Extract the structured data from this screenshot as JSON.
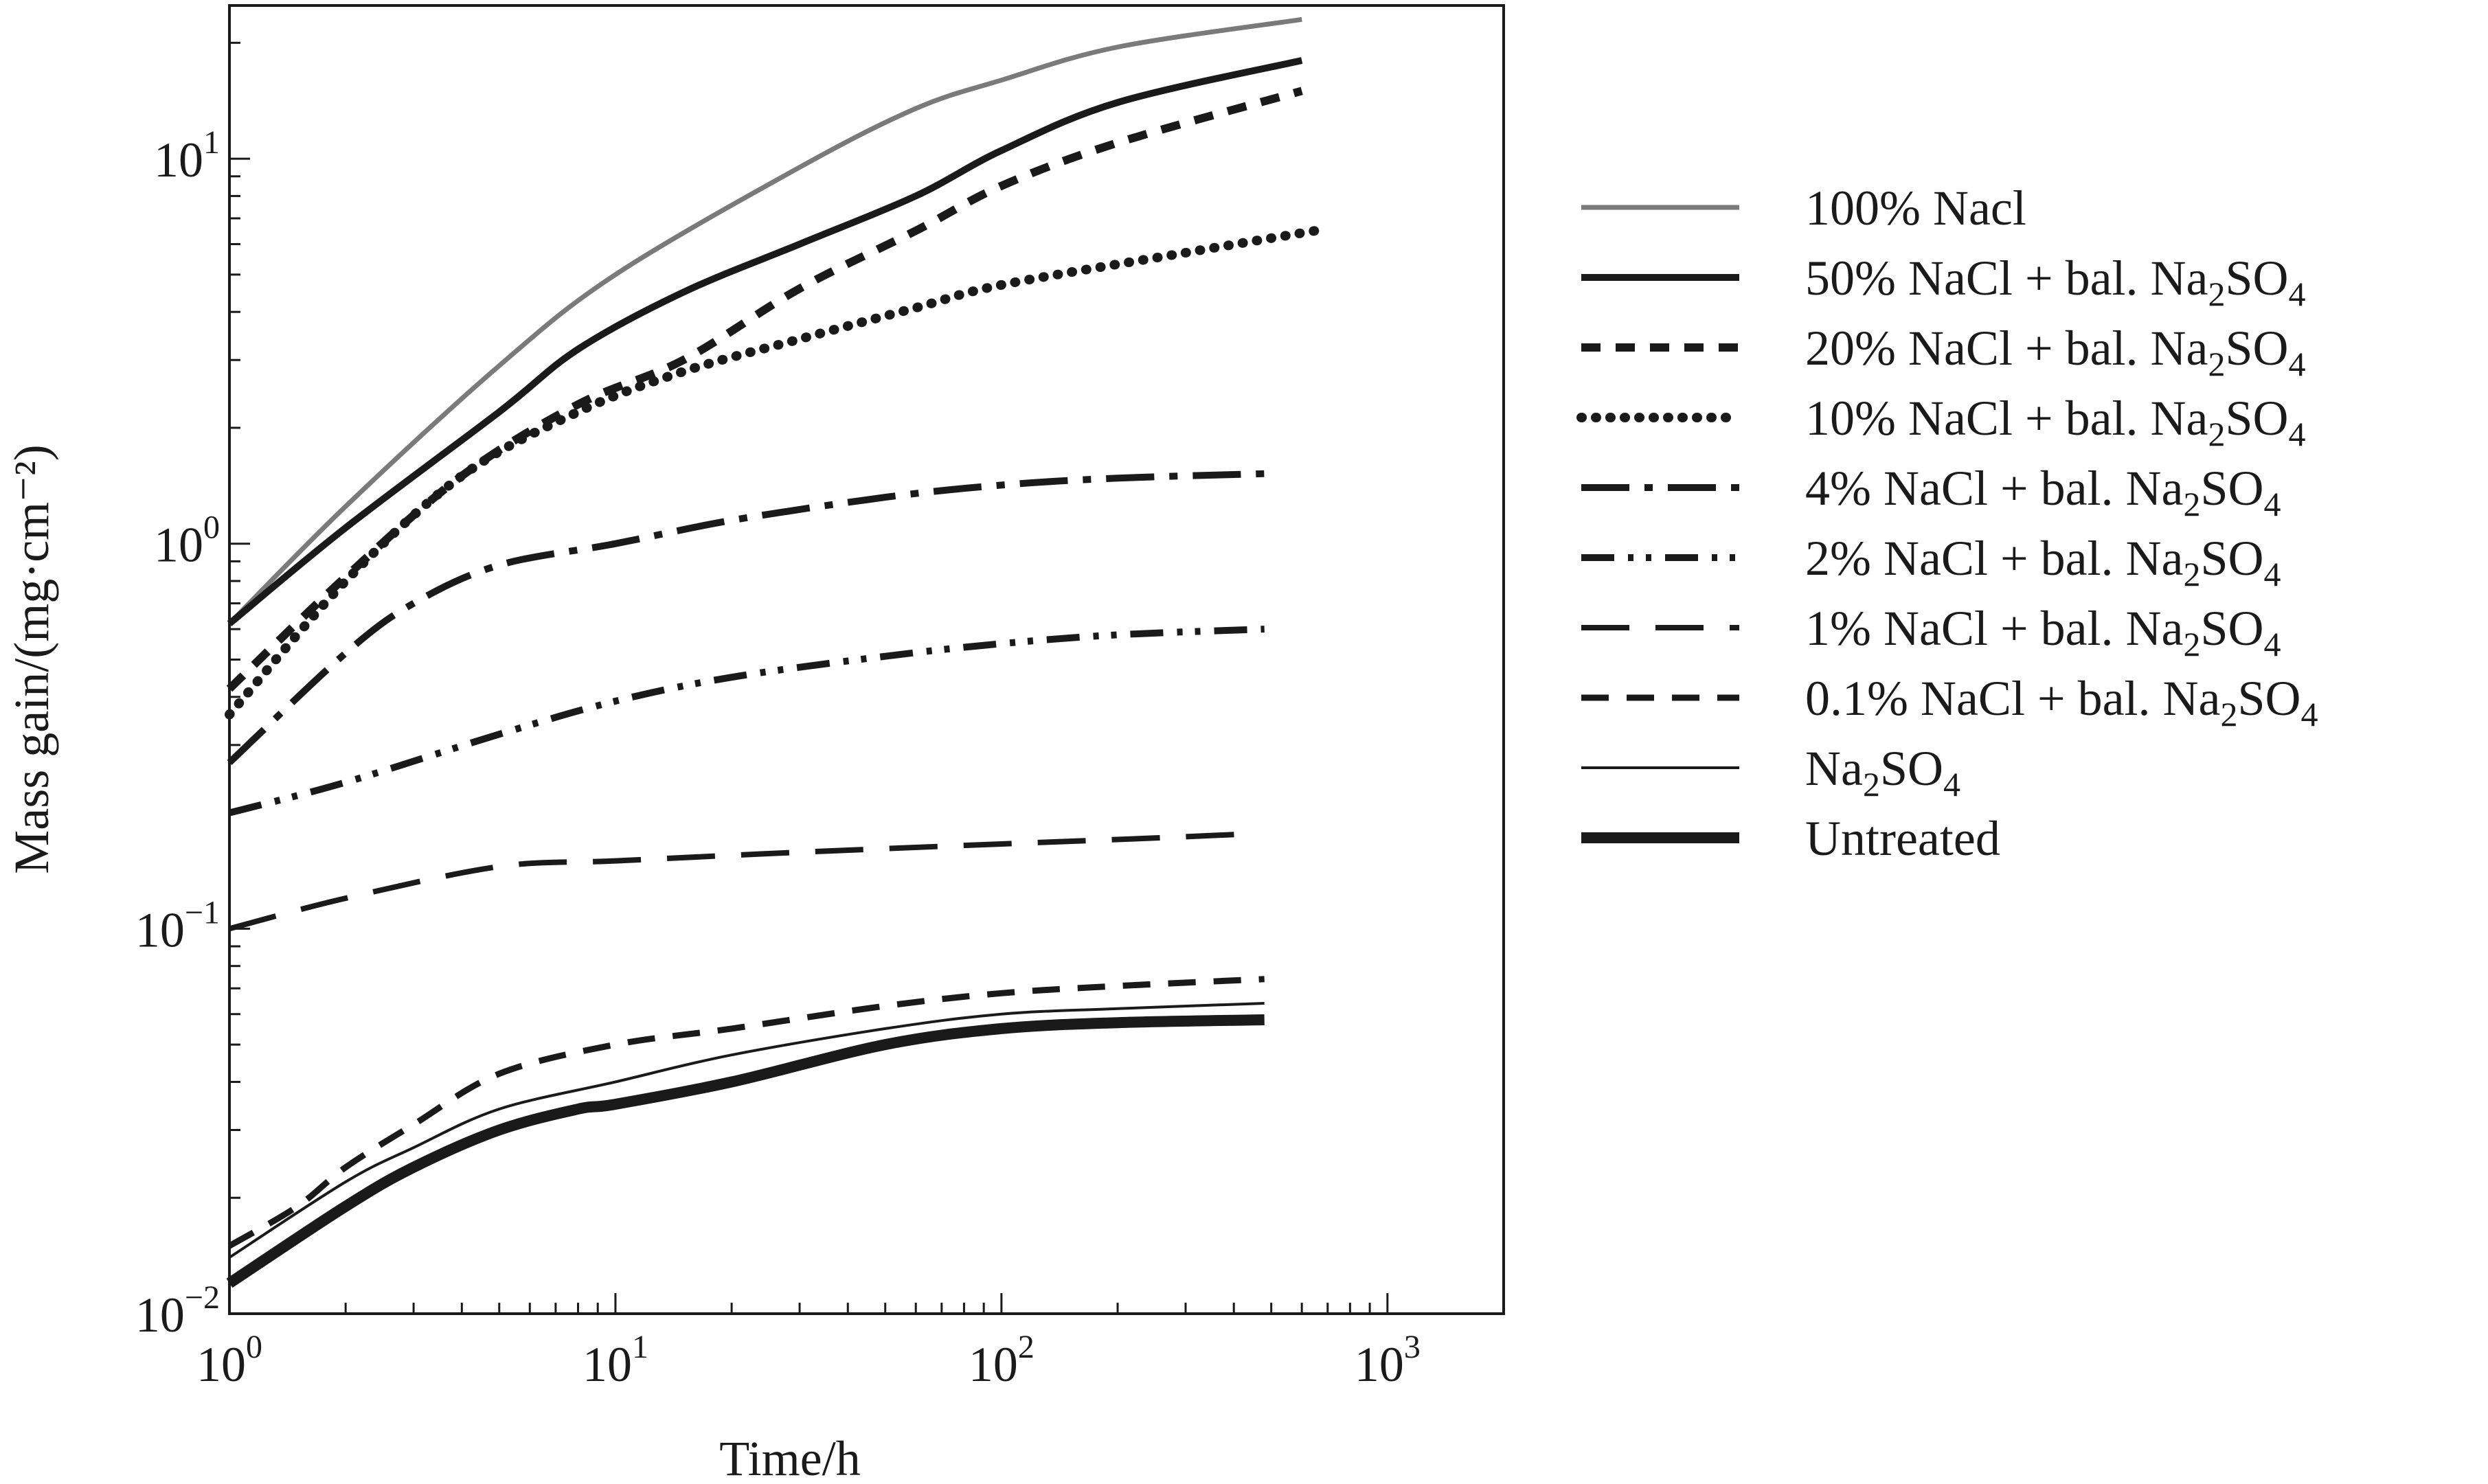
{
  "chart_data": {
    "type": "line",
    "title": "",
    "xlabel": "Time/h",
    "ylabel": "Mass gain/(mg·cm⁻²)",
    "xscale": "log",
    "yscale": "log",
    "xlim": [
      1,
      2000
    ],
    "ylim": [
      0.01,
      25
    ],
    "xticks": [
      {
        "value": 1,
        "base": "10",
        "exp": "0"
      },
      {
        "value": 10,
        "base": "10",
        "exp": "1"
      },
      {
        "value": 100,
        "base": "10",
        "exp": "2"
      },
      {
        "value": 1000,
        "base": "10",
        "exp": "3"
      }
    ],
    "yticks": [
      {
        "value": 0.01,
        "base": "10",
        "exp": "−2"
      },
      {
        "value": 0.1,
        "base": "10",
        "exp": "−1"
      },
      {
        "value": 1,
        "base": "10",
        "exp": "0"
      },
      {
        "value": 10,
        "base": "10",
        "exp": "1"
      }
    ],
    "grid": false,
    "legend_position": "right",
    "series": [
      {
        "name": "100% Nacl",
        "style": "solid-gray",
        "x": [
          1,
          2,
          5,
          10,
          30,
          60,
          100,
          200,
          600
        ],
        "y": [
          0.62,
          1.25,
          2.9,
          5.0,
          9.5,
          13.5,
          16.0,
          19.5,
          23.0
        ]
      },
      {
        "name": "50% NaCl + bal. Na2SO4",
        "label_main": "50% NaCl + bal. Na",
        "sub1": "2",
        "mid": "SO",
        "sub2": "4",
        "style": "thick-solid",
        "x": [
          1,
          2,
          5,
          8,
          15,
          30,
          60,
          100,
          200,
          600
        ],
        "y": [
          0.62,
          1.1,
          2.2,
          3.2,
          4.5,
          6.0,
          8.0,
          10.5,
          14.0,
          18.0
        ]
      },
      {
        "name": "20% NaCl + bal. Na2SO4",
        "label_main": "20% NaCl + bal. Na",
        "sub1": "2",
        "mid": "SO",
        "sub2": "4",
        "style": "short-dash",
        "x": [
          1,
          2,
          4,
          8,
          15,
          30,
          60,
          100,
          200,
          600
        ],
        "y": [
          0.42,
          0.82,
          1.5,
          2.3,
          3.0,
          4.6,
          6.5,
          8.5,
          11.0,
          15.0
        ]
      },
      {
        "name": "10% NaCl + bal. Na2SO4",
        "label_main": "10% NaCl + bal. Na",
        "sub1": "2",
        "mid": "SO",
        "sub2": "4",
        "style": "dotted",
        "x": [
          1,
          2,
          4,
          8,
          15,
          30,
          60,
          100,
          300,
          650
        ],
        "y": [
          0.36,
          0.8,
          1.5,
          2.2,
          2.8,
          3.4,
          4.1,
          4.7,
          5.7,
          6.5
        ]
      },
      {
        "name": "4% NaCl + bal. Na2SO4",
        "label_main": "4% NaCl + bal. Na",
        "sub1": "2",
        "mid": "SO",
        "sub2": "4",
        "style": "dash-dot",
        "x": [
          1,
          2,
          3,
          5,
          10,
          20,
          50,
          100,
          200,
          480
        ],
        "y": [
          0.27,
          0.52,
          0.7,
          0.88,
          1.0,
          1.15,
          1.32,
          1.42,
          1.48,
          1.52
        ]
      },
      {
        "name": "2% NaCl + bal. Na2SO4",
        "label_main": "2% NaCl + bal. Na",
        "sub1": "2",
        "mid": "SO",
        "sub2": "4",
        "style": "dash-dot-dot",
        "x": [
          1,
          2,
          5,
          10,
          20,
          50,
          100,
          200,
          480
        ],
        "y": [
          0.2,
          0.24,
          0.32,
          0.39,
          0.45,
          0.51,
          0.55,
          0.58,
          0.6
        ]
      },
      {
        "name": "1% NaCl + bal. Na2SO4",
        "label_main": "1% NaCl + bal. Na",
        "sub1": "2",
        "mid": "SO",
        "sub2": "4",
        "style": "long-dash",
        "x": [
          1,
          2,
          5,
          10,
          30,
          100,
          250,
          420
        ],
        "y": [
          0.1,
          0.12,
          0.145,
          0.15,
          0.158,
          0.166,
          0.172,
          0.176
        ]
      },
      {
        "name": "0.1% NaCl + bal. Na2SO4",
        "label_main": "0.1% NaCl + bal. Na",
        "sub1": "2",
        "mid": "SO",
        "sub2": "4",
        "style": "medium-dash",
        "x": [
          1,
          1.5,
          2,
          3,
          5,
          10,
          20,
          50,
          100,
          200,
          480
        ],
        "y": [
          0.015,
          0.019,
          0.024,
          0.031,
          0.042,
          0.05,
          0.055,
          0.063,
          0.068,
          0.071,
          0.074
        ]
      },
      {
        "name": "Na2SO4",
        "label_main": "Na",
        "sub1": "2",
        "mid": "SO",
        "sub2": "4",
        "style": "thin-solid",
        "x": [
          1,
          2,
          3,
          5,
          10,
          20,
          50,
          100,
          200,
          480
        ],
        "y": [
          0.014,
          0.022,
          0.027,
          0.034,
          0.04,
          0.047,
          0.055,
          0.06,
          0.062,
          0.064
        ]
      },
      {
        "name": "Untreated",
        "style": "very-thick",
        "x": [
          1,
          2,
          3,
          5,
          8,
          10,
          20,
          50,
          100,
          200,
          480
        ],
        "y": [
          0.012,
          0.019,
          0.024,
          0.03,
          0.034,
          0.035,
          0.04,
          0.05,
          0.055,
          0.057,
          0.058
        ]
      }
    ]
  }
}
